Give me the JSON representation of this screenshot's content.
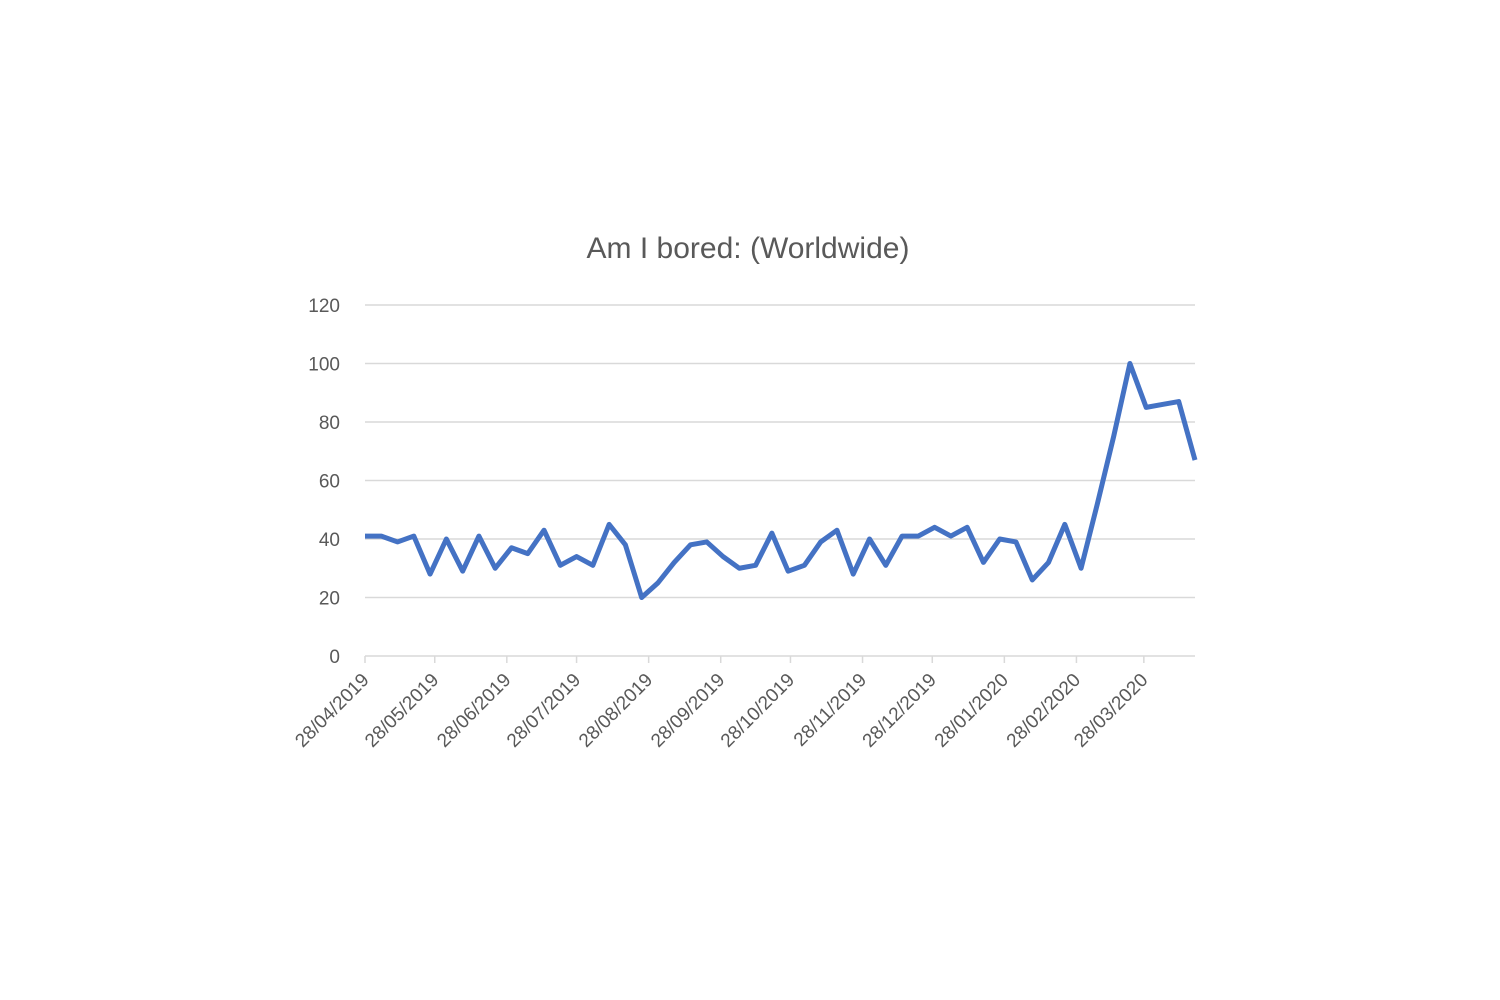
{
  "chart_data": {
    "type": "line",
    "title": "Am I bored: (Worldwide)",
    "x": [
      "28/04/2019",
      "05/05/2019",
      "12/05/2019",
      "19/05/2019",
      "26/05/2019",
      "02/06/2019",
      "09/06/2019",
      "16/06/2019",
      "23/06/2019",
      "30/06/2019",
      "07/07/2019",
      "14/07/2019",
      "21/07/2019",
      "28/07/2019",
      "04/08/2019",
      "11/08/2019",
      "18/08/2019",
      "25/08/2019",
      "01/09/2019",
      "08/09/2019",
      "15/09/2019",
      "22/09/2019",
      "29/09/2019",
      "06/10/2019",
      "13/10/2019",
      "20/10/2019",
      "27/10/2019",
      "03/11/2019",
      "10/11/2019",
      "17/11/2019",
      "24/11/2019",
      "01/12/2019",
      "08/12/2019",
      "15/12/2019",
      "22/12/2019",
      "29/12/2019",
      "05/01/2020",
      "12/01/2020",
      "19/01/2020",
      "26/01/2020",
      "02/02/2020",
      "09/02/2020",
      "16/02/2020",
      "23/02/2020",
      "01/03/2020",
      "08/03/2020",
      "15/03/2020",
      "22/03/2020",
      "29/03/2020",
      "05/04/2020",
      "12/04/2020",
      "19/04/2020"
    ],
    "series": [
      {
        "color": "#4472c4",
        "values": [
          41,
          41,
          39,
          41,
          28,
          40,
          29,
          41,
          30,
          37,
          35,
          43,
          31,
          34,
          31,
          45,
          38,
          20,
          25,
          32,
          38,
          39,
          34,
          30,
          31,
          42,
          29,
          31,
          39,
          43,
          28,
          40,
          31,
          41,
          41,
          44,
          41,
          44,
          32,
          40,
          39,
          26,
          32,
          45,
          30,
          52,
          75,
          100,
          85,
          86,
          87,
          67
        ]
      }
    ],
    "xlim": [
      "28/04/2019",
      "19/04/2020"
    ],
    "xticks": [
      "28/04/2019",
      "28/05/2019",
      "28/06/2019",
      "28/07/2019",
      "28/08/2019",
      "28/09/2019",
      "28/10/2019",
      "28/11/2019",
      "28/12/2019",
      "28/01/2020",
      "28/02/2020",
      "28/03/2020"
    ],
    "ylim": [
      0,
      120
    ],
    "yticks": [
      0,
      20,
      40,
      60,
      80,
      100,
      120
    ],
    "grid": true
  }
}
